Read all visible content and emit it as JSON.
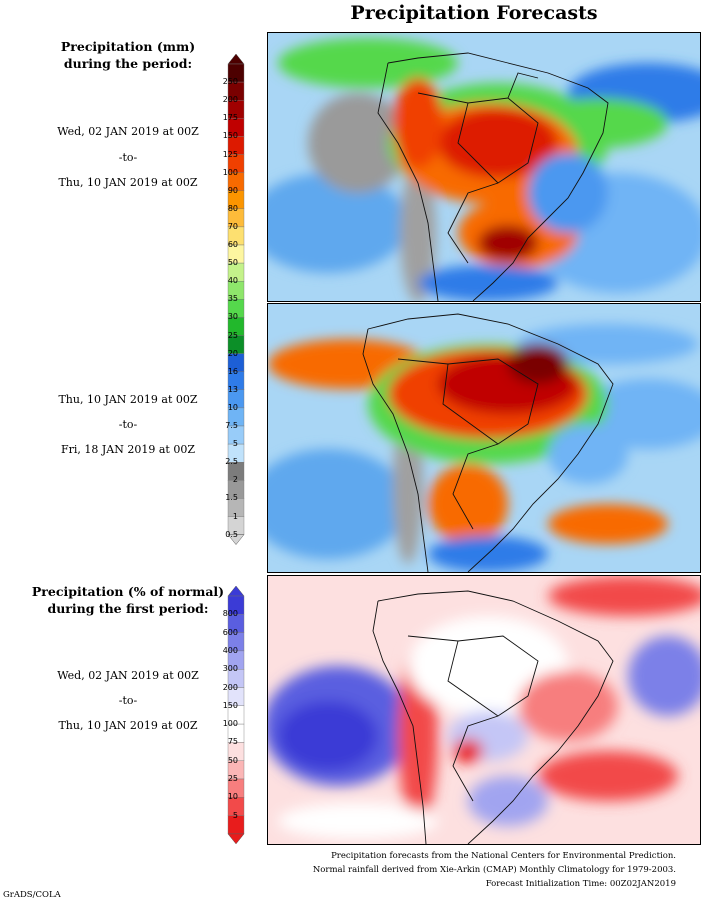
{
  "title": "Precipitation Forecasts",
  "panel1": {
    "heading_line1": "Precipitation (mm)",
    "heading_line2": "during the period:",
    "start": "Wed, 02 JAN 2019 at 00Z",
    "to": "-to-",
    "end": "Thu, 10 JAN 2019 at 00Z"
  },
  "panel2": {
    "start": "Thu, 10 JAN 2019 at 00Z",
    "to": "-to-",
    "end": "Fri, 18 JAN 2019 at 00Z"
  },
  "panel3": {
    "heading_line1": "Precipitation (% of normal)",
    "heading_line2": "during the first period:",
    "start": "Wed, 02 JAN 2019 at 00Z",
    "to": "-to-",
    "end": "Thu, 10 JAN 2019 at 00Z"
  },
  "mm_scale": {
    "labels": [
      "250",
      "200",
      "175",
      "150",
      "125",
      "100",
      "90",
      "80",
      "70",
      "60",
      "50",
      "40",
      "35",
      "30",
      "25",
      "20",
      "16",
      "13",
      "10",
      "7.5",
      "5",
      "2.5",
      "2",
      "1.5",
      "1",
      "0.5"
    ],
    "colors": [
      "#4d0000",
      "#7a0000",
      "#a00000",
      "#c00000",
      "#dd1a00",
      "#f04000",
      "#f86a00",
      "#fb9500",
      "#fdbb3a",
      "#fde070",
      "#fdf6a0",
      "#c4f28a",
      "#8ee66b",
      "#55d84c",
      "#22b82c",
      "#0c8f28",
      "#1d5fd6",
      "#2f7be8",
      "#4b98f0",
      "#6fb4f5",
      "#98ccf9",
      "#c0e2fb",
      "#7c7c7c",
      "#999999",
      "#b6b6b6",
      "#d4d4d4"
    ]
  },
  "pct_scale": {
    "labels": [
      "800",
      "600",
      "400",
      "300",
      "200",
      "150",
      "100",
      "75",
      "50",
      "25",
      "10",
      "5"
    ],
    "colors": [
      "#3b3bd6",
      "#5a5ee0",
      "#7c80e8",
      "#a1a4f0",
      "#c4c6f6",
      "#e2e3fb",
      "#ffffff",
      "#ffffff",
      "#fde0e0",
      "#fbb6b6",
      "#f77e7e",
      "#f24a4a",
      "#e81c1c"
    ]
  },
  "footer": {
    "line1": "Precipitation forecasts from the National Centers for Environmental Prediction.",
    "line2": "Normal rainfall derived from Xie-Arkin (CMAP) Monthly Climatology for 1979-2003.",
    "line3": "Forecast Initialization Time: 00Z02JAN2019"
  },
  "credit": "GrADS/COLA"
}
